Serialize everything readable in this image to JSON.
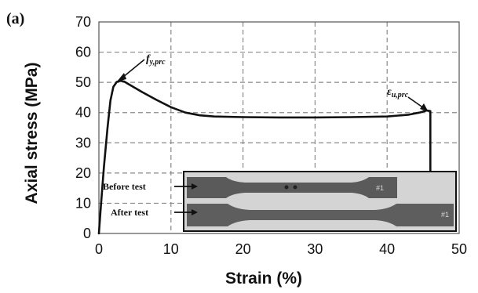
{
  "chart_data": {
    "type": "line",
    "panel_label": "(a)",
    "xlabel": "Strain (%)",
    "ylabel": "Axial stress (MPa)",
    "xlim": [
      0,
      50
    ],
    "ylim": [
      0,
      70
    ],
    "x_ticks": [
      0,
      10,
      20,
      30,
      40,
      50
    ],
    "y_ticks": [
      0,
      10,
      20,
      30,
      40,
      50,
      60,
      70
    ],
    "grid": true,
    "grid_style": "dashed",
    "line_color": "#111111",
    "series": [
      {
        "x": [
          0,
          0.3,
          0.7,
          1.2,
          1.6,
          2.0,
          2.5,
          3.0,
          3.5,
          4.0,
          5.0,
          6.0,
          8.0,
          10.0,
          12.0,
          14.0,
          16.0,
          20.0,
          25.0,
          30.0,
          35.0,
          40.0,
          43.0,
          44.5,
          45.5,
          46.0,
          46.0
        ],
        "y": [
          0,
          10,
          22,
          35,
          44,
          48.5,
          50.2,
          50.5,
          50.3,
          49.6,
          48.2,
          46.8,
          44.2,
          41.8,
          40.0,
          39.1,
          38.7,
          38.5,
          38.4,
          38.4,
          38.5,
          38.7,
          39.3,
          40.0,
          40.7,
          40.5,
          20.0
        ]
      }
    ],
    "annotations": [
      {
        "symbol": "f",
        "subscript": "y,prc",
        "x": 3.0,
        "y": 50.5
      },
      {
        "symbol": "ε",
        "subscript": "u,prc",
        "x": 45.5,
        "y": 40.7
      }
    ],
    "inset": {
      "labels": [
        "Before test",
        "After test"
      ],
      "specimen_marks": [
        "#1",
        "#1"
      ]
    }
  }
}
